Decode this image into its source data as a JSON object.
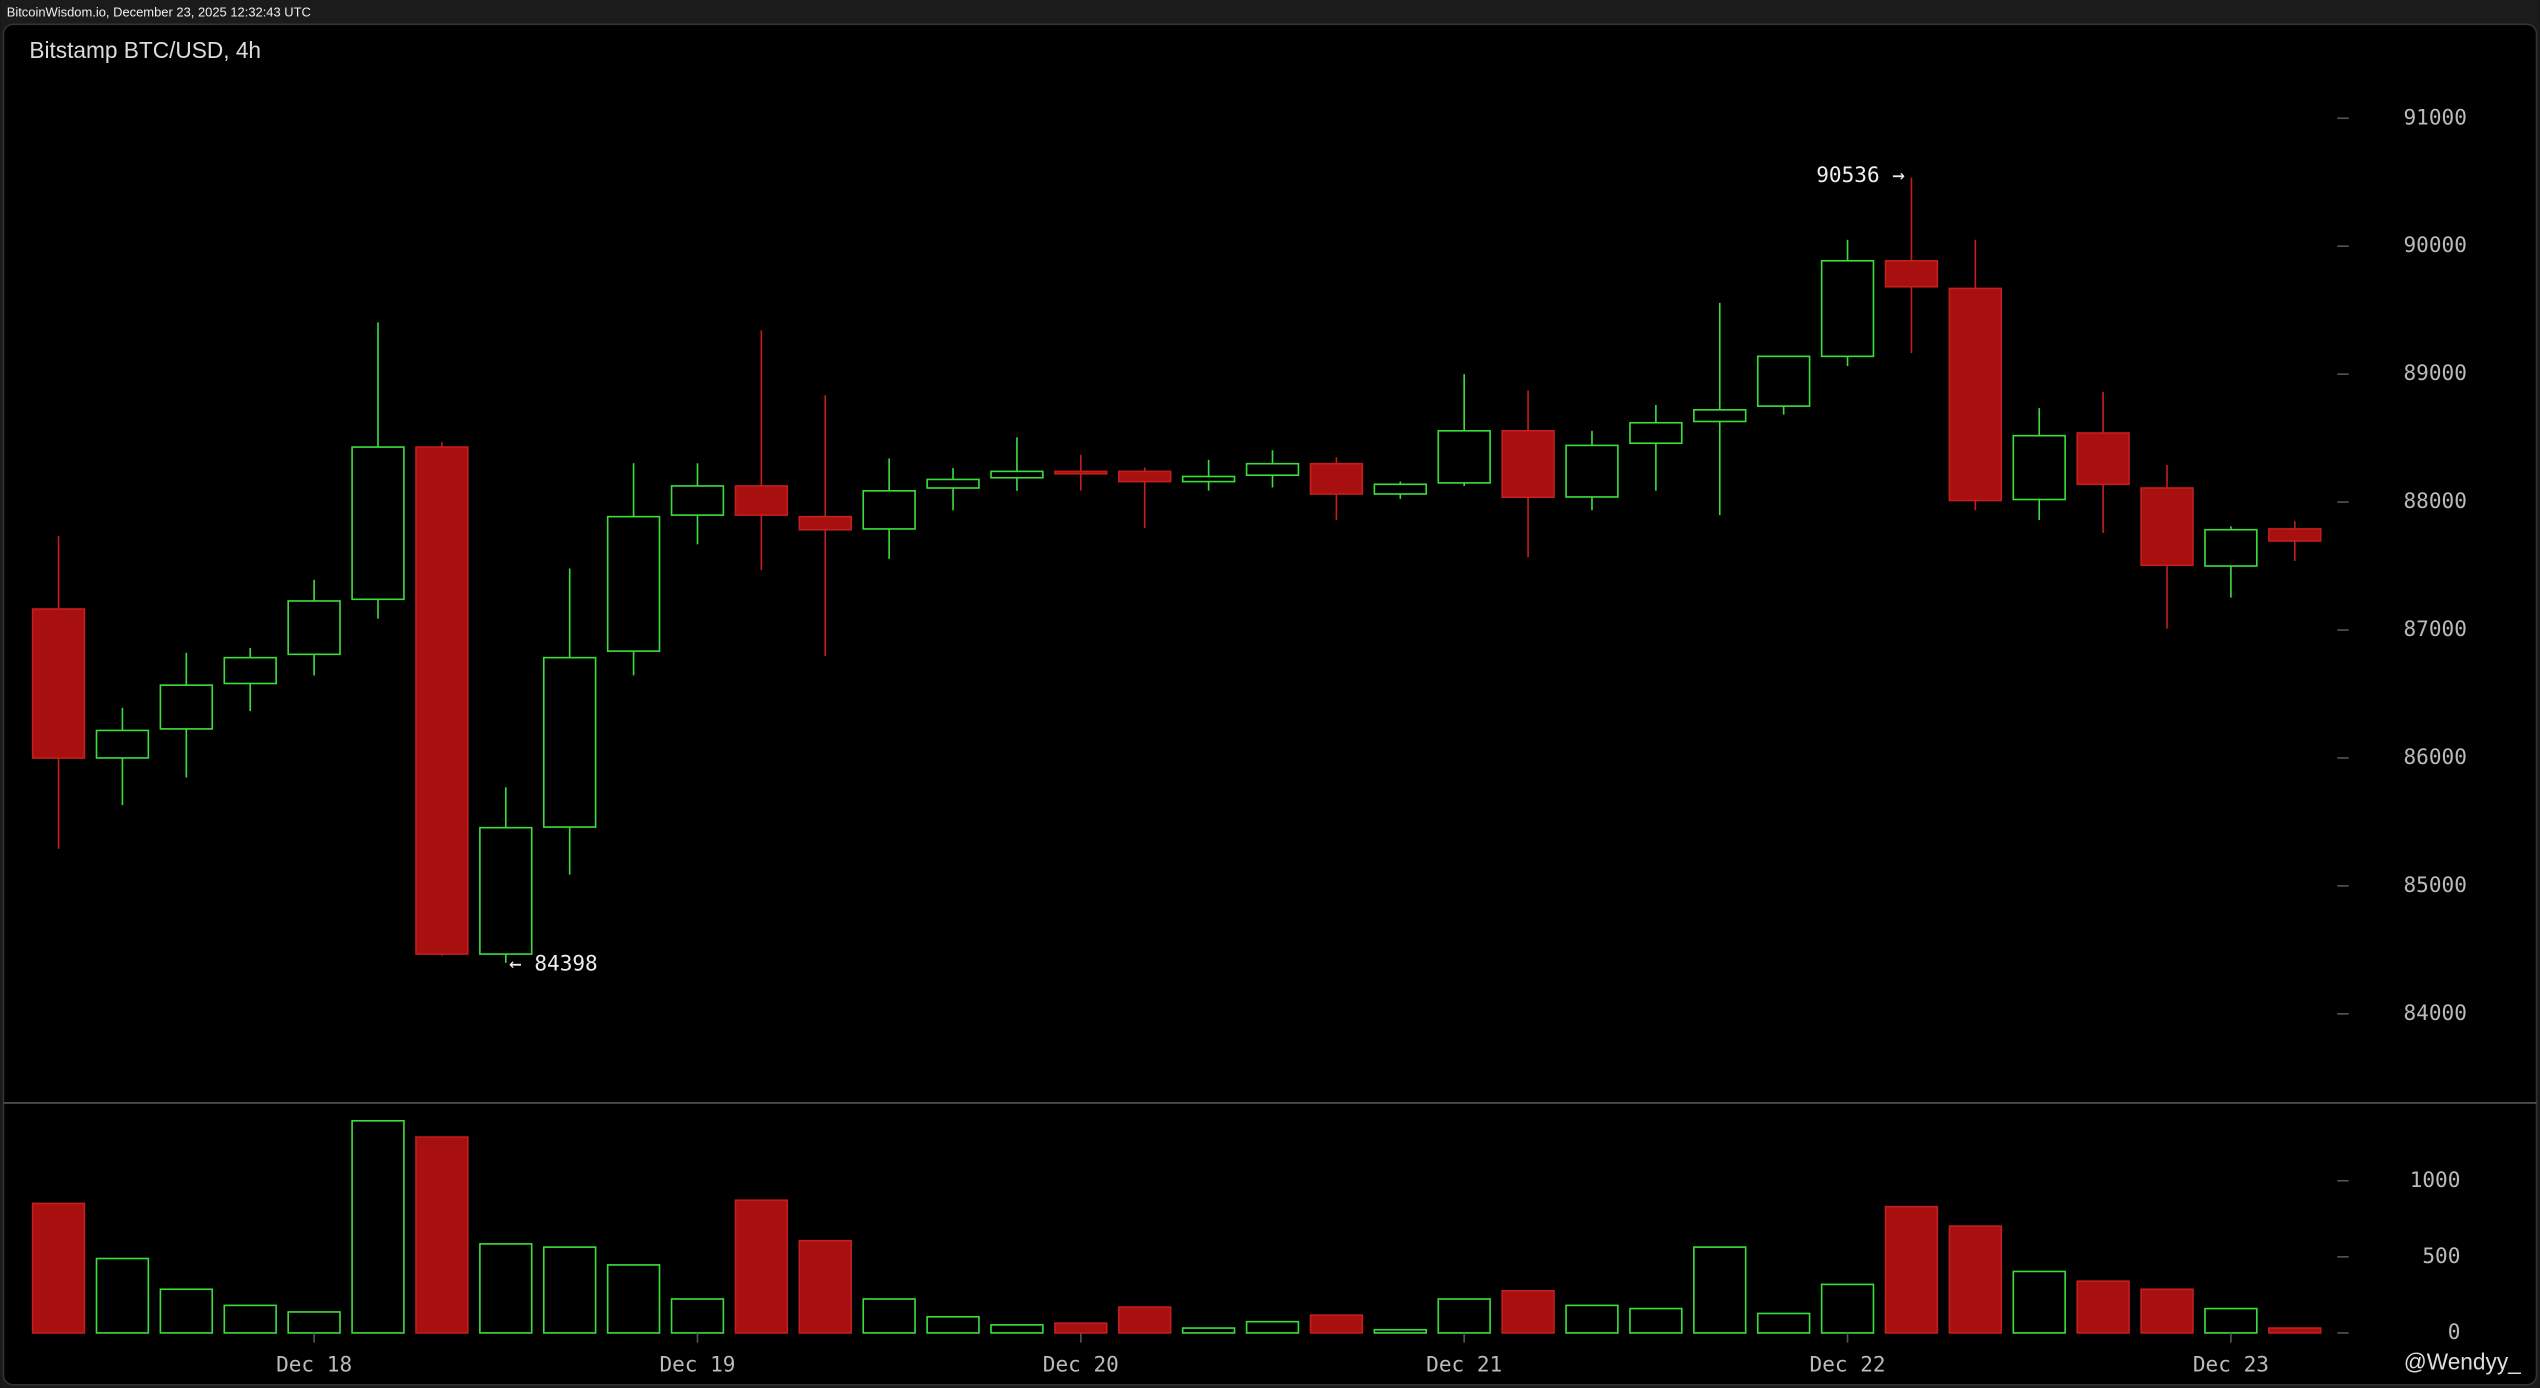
{
  "header": "BitcoinWisdom.io, December 23, 2025 12:32:43 UTC",
  "watermark": "@Wendyy_",
  "chart_data": {
    "type": "candlestick",
    "title": "Bitstamp BTC/USD, 4h",
    "categories": [
      null,
      null,
      null,
      null,
      "Dec 18",
      null,
      null,
      null,
      null,
      null,
      "Dec 19",
      null,
      null,
      null,
      null,
      null,
      "Dec 20",
      null,
      null,
      null,
      null,
      null,
      "Dec 21",
      null,
      null,
      null,
      null,
      null,
      "Dec 22",
      null,
      null,
      null,
      null,
      null,
      "Dec 23",
      null
    ],
    "open": [
      87164,
      86000,
      86227,
      86582,
      86810,
      87240,
      88430,
      84467,
      85460,
      86835,
      87898,
      88126,
      87886,
      87790,
      88110,
      88190,
      88240,
      88240,
      88160,
      88210,
      88300,
      88063,
      88150,
      88557,
      88040,
      88460,
      88630,
      88750,
      89139,
      89886,
      89670,
      88020,
      88540,
      88110,
      87500,
      87790
    ],
    "high": [
      87734,
      86392,
      86822,
      86860,
      87392,
      89405,
      88468,
      85771,
      87481,
      88303,
      88303,
      89342,
      88835,
      88341,
      88266,
      88506,
      88370,
      88270,
      88330,
      88405,
      88350,
      88160,
      89000,
      88873,
      88557,
      88759,
      89557,
      89139,
      90050,
      90536,
      90050,
      88734,
      88860,
      88291,
      87810,
      87850
    ],
    "low": [
      85290,
      85632,
      85847,
      86366,
      86645,
      87088,
      84455,
      84398,
      85088,
      86645,
      87670,
      87468,
      86797,
      87556,
      87936,
      88088,
      88090,
      87797,
      88090,
      88114,
      87860,
      88025,
      88126,
      87569,
      87936,
      88088,
      87898,
      88683,
      89063,
      89164,
      87936,
      87860,
      87759,
      87012,
      87253,
      87540
    ],
    "close": [
      85999,
      86215,
      86569,
      86784,
      87227,
      88430,
      84467,
      85455,
      86784,
      87886,
      88126,
      87898,
      87784,
      88088,
      88177,
      88240,
      88230,
      88160,
      88200,
      88300,
      88063,
      88139,
      88557,
      88038,
      88443,
      88620,
      88721,
      89139,
      89886,
      89683,
      88012,
      88519,
      88139,
      87506,
      87784,
      87696
    ],
    "ylim": [
      83316,
      91418
    ],
    "yticks": [
      84000,
      85000,
      86000,
      87000,
      88000,
      89000,
      90000,
      91000
    ],
    "up_color": "#3ddc3d",
    "down_color": "#a80f0f",
    "annotations": [
      {
        "label": "90536 →",
        "value": 90536
      },
      {
        "label": "← 84398",
        "value": 84398
      }
    ],
    "volume": {
      "values": [
        851,
        489,
        287,
        181,
        138,
        1394,
        1287,
        585,
        564,
        447,
        223,
        872,
        606,
        223,
        106,
        53,
        64,
        170,
        32,
        74,
        117,
        21,
        223,
        277,
        181,
        160,
        564,
        128,
        319,
        830,
        702,
        404,
        340,
        287,
        160,
        32
      ],
      "ylim": [
        0,
        1490
      ],
      "yticks": [
        0,
        500,
        1000
      ]
    }
  }
}
